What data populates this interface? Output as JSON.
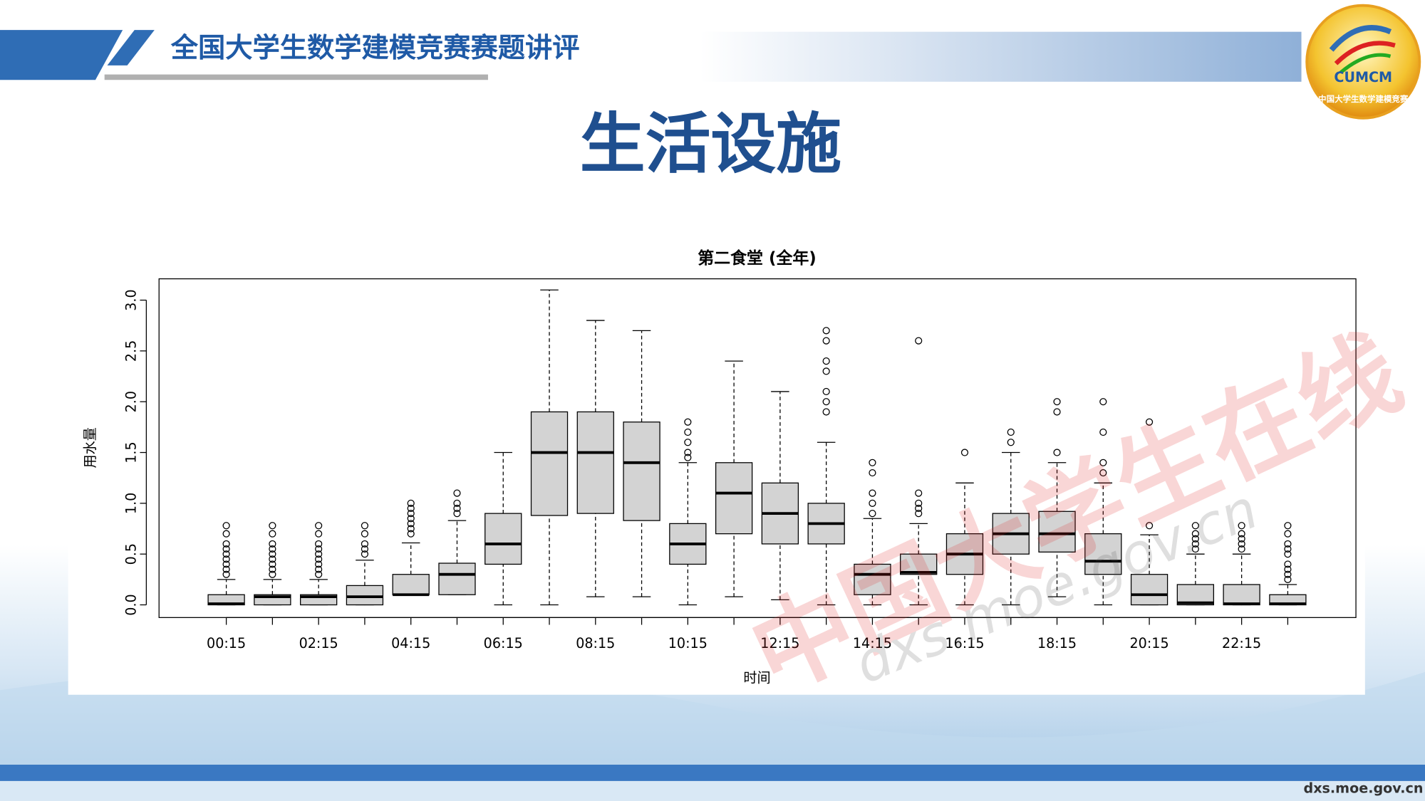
{
  "header": {
    "title": "全国大学生数学建模竞赛赛题讲评",
    "logo_text": "CUMCM",
    "logo_ring": "中国大学生数学建模竞赛"
  },
  "slide_title": "生活设施",
  "watermark": {
    "text": "中国大学生在线",
    "url": "dxs.moe.gov.cn"
  },
  "footer": "dxs.moe.gov.cn",
  "chart_data": {
    "type": "box",
    "title": "第二食堂 (全年)",
    "x_label": "时间",
    "y_label": "用水量",
    "categories": [
      "00:15",
      null,
      "02:15",
      null,
      "04:15",
      null,
      "06:15",
      null,
      "08:15",
      null,
      "10:15",
      null,
      "12:15",
      null,
      "14:15",
      null,
      "16:15",
      null,
      "18:15",
      null,
      "20:15",
      null,
      "22:15",
      null
    ],
    "color": "#d3d3d3",
    "boxes": {
      "min": [
        0,
        0,
        0,
        0,
        0.1,
        0.1,
        0,
        0,
        0.08,
        0.08,
        0,
        0.08,
        0.05,
        0,
        0,
        0,
        0,
        0,
        0.08,
        0,
        0,
        0,
        0,
        0
      ],
      "q1": [
        0,
        0,
        0,
        0,
        0.1,
        0.1,
        0.4,
        0.88,
        0.9,
        0.83,
        0.4,
        0.7,
        0.6,
        0.6,
        0.1,
        0.3,
        0.3,
        0.5,
        0.52,
        0.3,
        0,
        0,
        0,
        0
      ],
      "median": [
        0.01,
        0.08,
        0.08,
        0.08,
        0.1,
        0.3,
        0.6,
        1.5,
        1.5,
        1.4,
        0.6,
        1.1,
        0.9,
        0.8,
        0.3,
        0.32,
        0.5,
        0.7,
        0.7,
        0.43,
        0.1,
        0.02,
        0.01,
        0.01
      ],
      "q3": [
        0.1,
        0.1,
        0.1,
        0.19,
        0.3,
        0.41,
        0.9,
        1.9,
        1.9,
        1.8,
        0.8,
        1.4,
        1.2,
        1.0,
        0.4,
        0.5,
        0.7,
        0.9,
        0.92,
        0.7,
        0.3,
        0.2,
        0.2,
        0.1
      ],
      "max": [
        0.25,
        0.25,
        0.25,
        0.44,
        0.61,
        0.83,
        1.5,
        3.1,
        2.8,
        2.7,
        1.4,
        2.4,
        2.1,
        1.6,
        0.85,
        0.8,
        1.2,
        1.5,
        1.4,
        1.2,
        0.69,
        0.5,
        0.5,
        0.2
      ],
      "outliers": [
        [
          0.3,
          0.35,
          0.4,
          0.45,
          0.5,
          0.55,
          0.6,
          0.7,
          0.78
        ],
        [
          0.3,
          0.35,
          0.4,
          0.45,
          0.5,
          0.55,
          0.6,
          0.7,
          0.78
        ],
        [
          0.3,
          0.35,
          0.4,
          0.45,
          0.5,
          0.55,
          0.6,
          0.7,
          0.78
        ],
        [
          0.5,
          0.55,
          0.6,
          0.7,
          0.78
        ],
        [
          0.7,
          0.75,
          0.8,
          0.85,
          0.9,
          0.95,
          1.0
        ],
        [
          0.9,
          0.95,
          1.0,
          1.1
        ],
        [],
        [],
        [],
        [],
        [
          1.45,
          1.5,
          1.6,
          1.7,
          1.8
        ],
        [],
        [],
        [
          1.9,
          2.0,
          2.1,
          2.3,
          2.4,
          2.6,
          2.7
        ],
        [
          0.9,
          1.0,
          1.1,
          1.3,
          1.4
        ],
        [
          0.9,
          0.95,
          1.0,
          1.1,
          2.6
        ],
        [
          1.5
        ],
        [
          1.6,
          1.7
        ],
        [
          1.5,
          1.9,
          2.0
        ],
        [
          1.3,
          1.4,
          1.7,
          2.0
        ],
        [
          0.78,
          1.8
        ],
        [
          0.55,
          0.6,
          0.65,
          0.7,
          0.78
        ],
        [
          0.55,
          0.6,
          0.65,
          0.7,
          0.78
        ],
        [
          0.25,
          0.3,
          0.35,
          0.4,
          0.5,
          0.55,
          0.6,
          0.7,
          0.78
        ]
      ]
    },
    "ylim": [
      -0.125,
      3.21
    ],
    "yticks": [
      {
        "value": 0,
        "label": "0.0"
      },
      0.5,
      {
        "value": 1,
        "label": "1.0"
      },
      1.5,
      {
        "value": 2,
        "label": "2.0"
      },
      2.5,
      {
        "value": 3,
        "label": "3.0"
      }
    ]
  }
}
